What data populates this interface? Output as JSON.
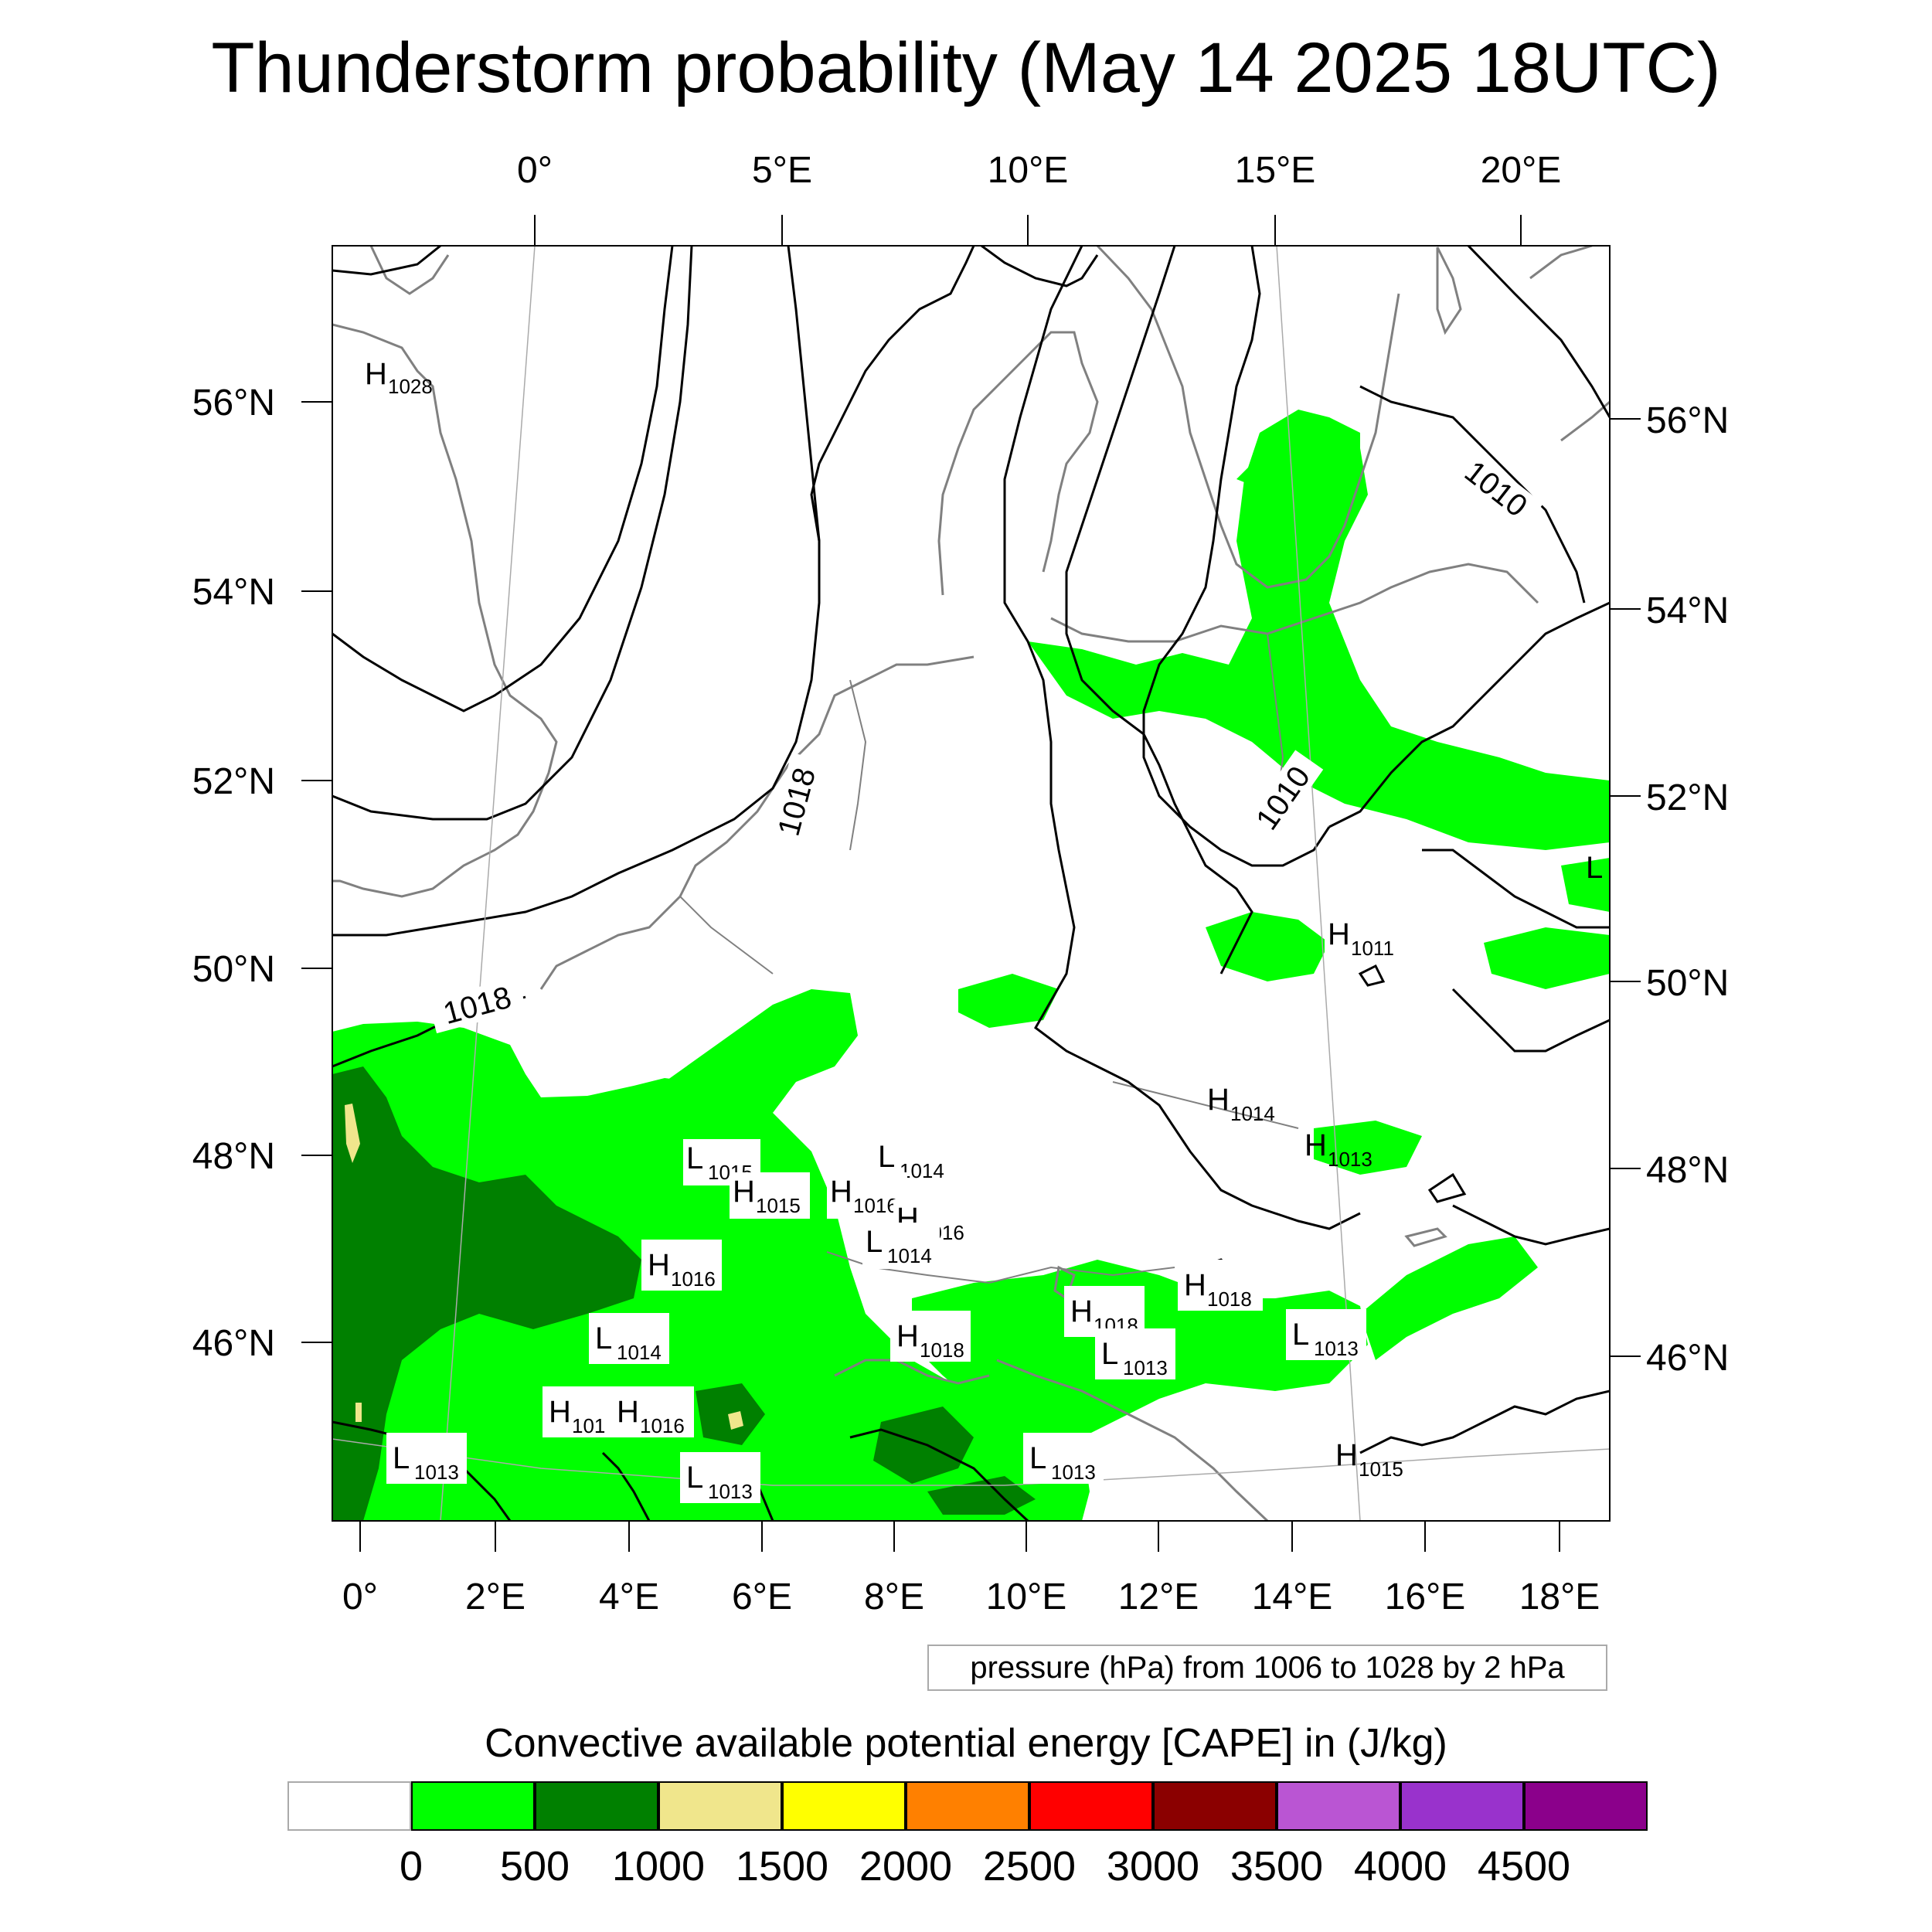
{
  "title": "Thunderstorm probability (May 14 2025 18UTC)",
  "top_axis_labels": [
    "0°",
    "5°E",
    "10°E",
    "15°E",
    "20°E"
  ],
  "left_axis_labels": [
    "56°N",
    "54°N",
    "52°N",
    "50°N",
    "48°N",
    "46°N"
  ],
  "right_axis_labels": [
    "56°N",
    "54°N",
    "52°N",
    "50°N",
    "48°N",
    "46°N"
  ],
  "bottom_axis_labels": [
    "0°",
    "2°E",
    "4°E",
    "6°E",
    "8°E",
    "10°E",
    "12°E",
    "14°E",
    "16°E",
    "18°E"
  ],
  "contour_labels": [
    "1010",
    "1018",
    "1010",
    "1018"
  ],
  "pressure_centers": [
    {
      "type": "H",
      "value": "1028"
    },
    {
      "type": "L",
      "value": "1015"
    },
    {
      "type": "H",
      "value": "1015"
    },
    {
      "type": "L",
      "value": "1014"
    },
    {
      "type": "H",
      "value": "1016"
    },
    {
      "type": "H",
      "value": "1016"
    },
    {
      "type": "L",
      "value": "1014"
    },
    {
      "type": "H",
      "value": "1016"
    },
    {
      "type": "L",
      "value": "1014"
    },
    {
      "type": "H",
      "value": "1018"
    },
    {
      "type": "H",
      "value": "101"
    },
    {
      "type": "H",
      "value": "1016"
    },
    {
      "type": "L",
      "value": "1013"
    },
    {
      "type": "L",
      "value": "1013"
    },
    {
      "type": "L",
      "value": "1013"
    },
    {
      "type": "H",
      "value": "1018"
    },
    {
      "type": "L",
      "value": "1013"
    },
    {
      "type": "H",
      "value": "1018"
    },
    {
      "type": "L",
      "value": "1013"
    },
    {
      "type": "H",
      "value": "1014"
    },
    {
      "type": "H",
      "value": "1013"
    },
    {
      "type": "H",
      "value": "1011"
    },
    {
      "type": "H",
      "value": "1015"
    },
    {
      "type": "L",
      "value": ""
    }
  ],
  "contour_info": "pressure (hPa) from 1006 to 1028 by 2 hPa",
  "colorbar": {
    "title": "Convective available potential energy [CAPE] in (J/kg)",
    "colors": [
      "#ffffff",
      "#00ff00",
      "#008000",
      "#f0e68c",
      "#ffff00",
      "#ff8000",
      "#ff0000",
      "#8b0000",
      "#ba55d3",
      "#9932cc",
      "#8b008b"
    ],
    "labels": [
      "0",
      "500",
      "1000",
      "1500",
      "2000",
      "2500",
      "3000",
      "3500",
      "4000",
      "4500"
    ]
  },
  "cape_colors": {
    "c0_500": "#00ff00",
    "c500_1000": "#008000",
    "c1000_1500": "#f0e68c"
  }
}
